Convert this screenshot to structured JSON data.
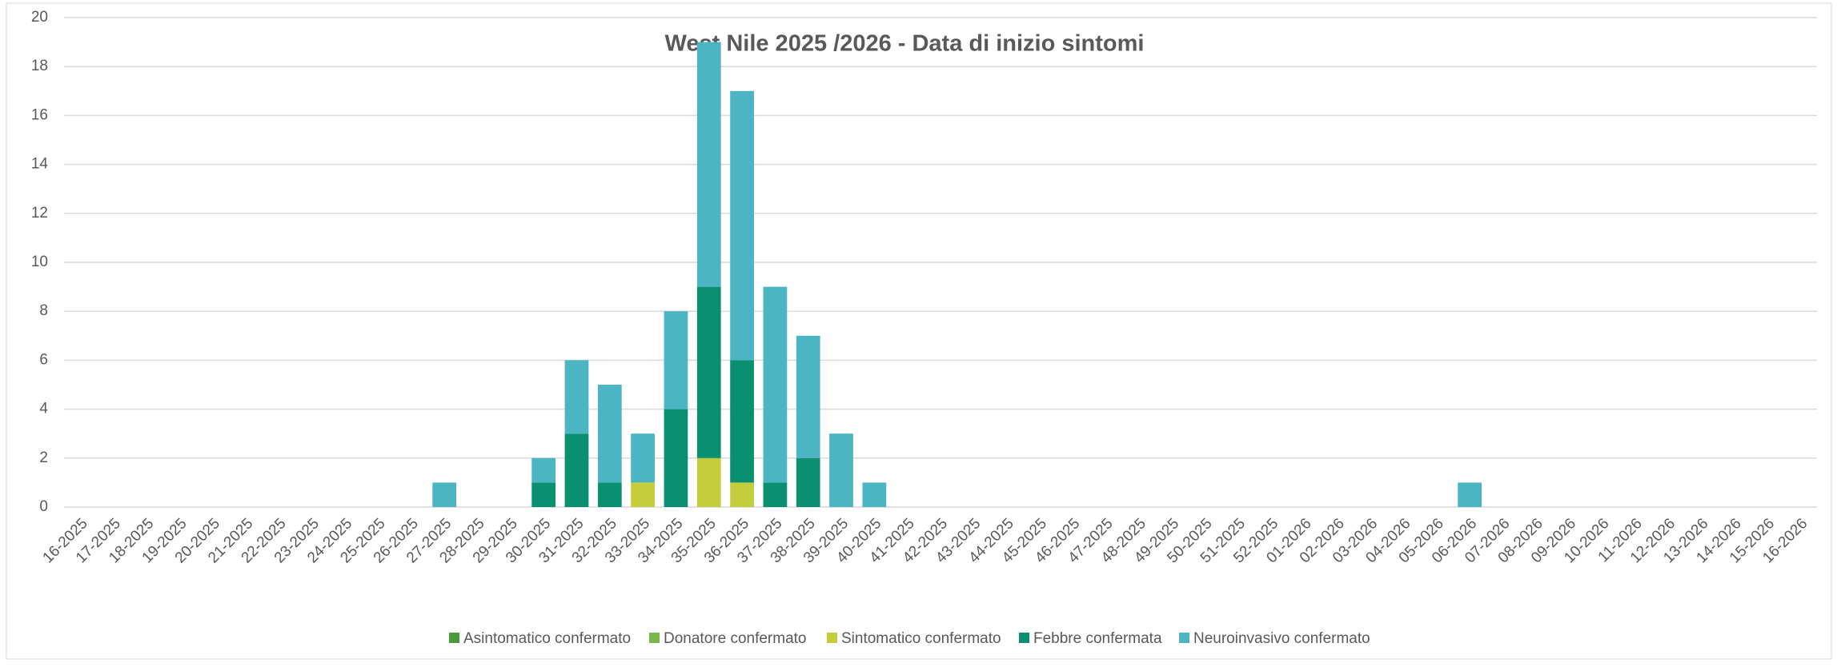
{
  "chart_data": {
    "type": "bar",
    "stacked": true,
    "title": "West Nile 2025 /2026  - Data di inizio sintomi",
    "categories": [
      "16-2025",
      "17-2025",
      "18-2025",
      "19-2025",
      "20-2025",
      "21-2025",
      "22-2025",
      "23-2025",
      "24-2025",
      "25-2025",
      "26-2025",
      "27-2025",
      "28-2025",
      "29-2025",
      "30-2025",
      "31-2025",
      "32-2025",
      "33-2025",
      "34-2025",
      "35-2025",
      "36-2025",
      "37-2025",
      "38-2025",
      "39-2025",
      "40-2025",
      "41-2025",
      "42-2025",
      "43-2025",
      "44-2025",
      "45-2025",
      "46-2025",
      "47-2025",
      "48-2025",
      "49-2025",
      "50-2025",
      "51-2025",
      "52-2025",
      "01-2026",
      "02-2026",
      "03-2026",
      "04-2026",
      "05-2026",
      "06-2026",
      "07-2026",
      "08-2026",
      "09-2026",
      "10-2026",
      "11-2026",
      "12-2026",
      "13-2026",
      "14-2026",
      "15-2026",
      "16-2026"
    ],
    "series": [
      {
        "name": "Asintomatico confermato",
        "color": "#4a9a3a",
        "values": [
          0,
          0,
          0,
          0,
          0,
          0,
          0,
          0,
          0,
          0,
          0,
          0,
          0,
          0,
          0,
          0,
          0,
          0,
          0,
          0,
          0,
          0,
          0,
          0,
          0,
          0,
          0,
          0,
          0,
          0,
          0,
          0,
          0,
          0,
          0,
          0,
          0,
          0,
          0,
          0,
          0,
          0,
          0,
          0,
          0,
          0,
          0,
          0,
          0,
          0,
          0,
          0,
          0
        ]
      },
      {
        "name": "Donatore confermato",
        "color": "#7ab648",
        "values": [
          0,
          0,
          0,
          0,
          0,
          0,
          0,
          0,
          0,
          0,
          0,
          0,
          0,
          0,
          0,
          0,
          0,
          0,
          0,
          0,
          0,
          0,
          0,
          0,
          0,
          0,
          0,
          0,
          0,
          0,
          0,
          0,
          0,
          0,
          0,
          0,
          0,
          0,
          0,
          0,
          0,
          0,
          0,
          0,
          0,
          0,
          0,
          0,
          0,
          0,
          0,
          0,
          0
        ]
      },
      {
        "name": "Sintomatico confermato",
        "color": "#c3cc3a",
        "values": [
          0,
          0,
          0,
          0,
          0,
          0,
          0,
          0,
          0,
          0,
          0,
          0,
          0,
          0,
          0,
          0,
          0,
          1,
          0,
          2,
          1,
          0,
          0,
          0,
          0,
          0,
          0,
          0,
          0,
          0,
          0,
          0,
          0,
          0,
          0,
          0,
          0,
          0,
          0,
          0,
          0,
          0,
          0,
          0,
          0,
          0,
          0,
          0,
          0,
          0,
          0,
          0,
          0
        ]
      },
      {
        "name": "Febbre confermata",
        "color": "#0a9070",
        "values": [
          0,
          0,
          0,
          0,
          0,
          0,
          0,
          0,
          0,
          0,
          0,
          0,
          0,
          0,
          1,
          3,
          1,
          0,
          4,
          7,
          5,
          1,
          2,
          0,
          0,
          0,
          0,
          0,
          0,
          0,
          0,
          0,
          0,
          0,
          0,
          0,
          0,
          0,
          0,
          0,
          0,
          0,
          0,
          0,
          0,
          0,
          0,
          0,
          0,
          0,
          0,
          0,
          0
        ]
      },
      {
        "name": "Neuroinvasivo confermato",
        "color": "#4bb5c4",
        "values": [
          0,
          0,
          0,
          0,
          0,
          0,
          0,
          0,
          0,
          0,
          0,
          1,
          0,
          0,
          1,
          3,
          4,
          2,
          4,
          10,
          11,
          8,
          5,
          3,
          1,
          0,
          0,
          0,
          0,
          0,
          0,
          0,
          0,
          0,
          0,
          0,
          0,
          0,
          0,
          0,
          0,
          0,
          1,
          0,
          0,
          0,
          0,
          0,
          0,
          0,
          0,
          0,
          0
        ]
      }
    ],
    "ylim": [
      0,
      20
    ],
    "yticks": [
      0,
      2,
      4,
      6,
      8,
      10,
      12,
      14,
      16,
      18,
      20
    ],
    "grid": true,
    "legend": "bottom"
  }
}
